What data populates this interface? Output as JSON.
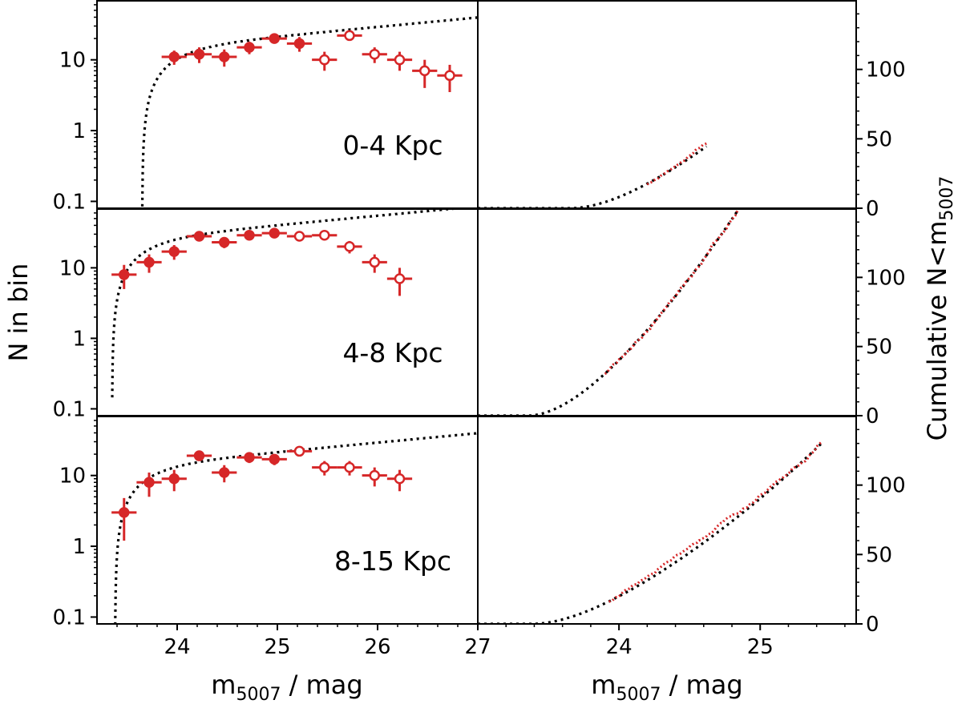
{
  "chart_data": {
    "type": "scatter",
    "figure_layout": "3 rows x 2 columns (left: differential luminosity function, log scale; right: cumulative counts, linear scale)",
    "colors": {
      "data": "#d62728",
      "model": "#000000",
      "frame": "#000000"
    },
    "left_axis": {
      "ylabel": "N in bin",
      "scale": "log",
      "ylim": [
        0.08,
        70
      ],
      "yticks": [
        0.1,
        1,
        10
      ],
      "ytick_labels": [
        "0.1",
        "1",
        "10"
      ],
      "xlabel_main": "m",
      "xlabel_sub": "5007",
      "xlabel_tail": " / mag",
      "xlim": [
        23.2,
        27.0
      ],
      "xticks": [
        24,
        25,
        26,
        27
      ],
      "xtick_labels": [
        "24",
        "25",
        "26",
        "27"
      ]
    },
    "right_axis": {
      "ylabel_main": "Cumulative N<m",
      "ylabel_sub": "5007",
      "scale": "linear",
      "ylim": [
        0,
        150
      ],
      "yticks": [
        0,
        50,
        100
      ],
      "ytick_labels": [
        "0",
        "50",
        "100"
      ],
      "xlabel_main": "m",
      "xlabel_sub": "5007",
      "xlabel_tail": " / mag",
      "xlim": [
        23.0,
        25.68
      ],
      "xticks": [
        24,
        25
      ],
      "xtick_labels": [
        "24",
        "25"
      ]
    },
    "panels": [
      {
        "label": "0-4 Kpc",
        "m_cut": 24.63,
        "model_params": {
          "scale": 25.0,
          "m_star": 23.65
        },
        "bins": [
          {
            "x": 23.97,
            "y": 11,
            "err": 2.5,
            "filled": true
          },
          {
            "x": 24.22,
            "y": 12,
            "err": 3.0,
            "filled": true
          },
          {
            "x": 24.47,
            "y": 11,
            "err": 3.0,
            "filled": true
          },
          {
            "x": 24.72,
            "y": 15,
            "err": 3.0,
            "filled": true
          },
          {
            "x": 24.97,
            "y": 20,
            "err": 3.0,
            "filled": true
          },
          {
            "x": 25.22,
            "y": 17,
            "err": 4.0,
            "filled": true
          },
          {
            "x": 25.47,
            "y": 10,
            "err": 3.0,
            "filled": false
          },
          {
            "x": 25.72,
            "y": 22,
            "err": 2.0,
            "filled": false
          },
          {
            "x": 25.97,
            "y": 12,
            "err": 3.0,
            "filled": false
          },
          {
            "x": 26.22,
            "y": 10,
            "err": 3.0,
            "filled": false
          },
          {
            "x": 26.47,
            "y": 7,
            "err": 3.0,
            "filled": false
          },
          {
            "x": 26.72,
            "y": 6,
            "err": 2.5,
            "filled": false
          }
        ]
      },
      {
        "label": "4-8 Kpc",
        "m_cut": 25.12,
        "model_params": {
          "scale": 47.0,
          "m_star": 23.35
        },
        "bins": [
          {
            "x": 23.47,
            "y": 8,
            "err": 3.0,
            "filled": true
          },
          {
            "x": 23.72,
            "y": 12,
            "err": 3.5,
            "filled": true
          },
          {
            "x": 23.97,
            "y": 17,
            "err": 4.0,
            "filled": true
          },
          {
            "x": 24.22,
            "y": 28,
            "err": 3.0,
            "filled": true
          },
          {
            "x": 24.47,
            "y": 23,
            "err": 4.0,
            "filled": true
          },
          {
            "x": 24.72,
            "y": 29,
            "err": 3.0,
            "filled": true
          },
          {
            "x": 24.97,
            "y": 31,
            "err": 3.0,
            "filled": true
          },
          {
            "x": 25.22,
            "y": 28,
            "err": 4.0,
            "filled": false
          },
          {
            "x": 25.47,
            "y": 29,
            "err": 3.0,
            "filled": false
          },
          {
            "x": 25.72,
            "y": 20,
            "err": 4.0,
            "filled": false
          },
          {
            "x": 25.97,
            "y": 12,
            "err": 3.5,
            "filled": false
          },
          {
            "x": 26.22,
            "y": 7,
            "err": 3.0,
            "filled": false
          }
        ]
      },
      {
        "label": "8-15 Kpc",
        "m_cut": 25.45,
        "model_params": {
          "scale": 25.0,
          "m_star": 23.38
        },
        "bins": [
          {
            "x": 23.47,
            "y": 3,
            "err": 1.8,
            "filled": true
          },
          {
            "x": 23.72,
            "y": 8,
            "err": 3.0,
            "filled": true
          },
          {
            "x": 23.97,
            "y": 9,
            "err": 3.0,
            "filled": true
          },
          {
            "x": 24.22,
            "y": 19,
            "err": 3.0,
            "filled": true
          },
          {
            "x": 24.47,
            "y": 11,
            "err": 3.0,
            "filled": true
          },
          {
            "x": 24.72,
            "y": 18,
            "err": 3.0,
            "filled": true
          },
          {
            "x": 24.97,
            "y": 17,
            "err": 3.0,
            "filled": true
          },
          {
            "x": 25.22,
            "y": 22,
            "err": 3.0,
            "filled": false
          },
          {
            "x": 25.47,
            "y": 13,
            "err": 3.0,
            "filled": false
          },
          {
            "x": 25.72,
            "y": 13,
            "err": 3.0,
            "filled": false
          },
          {
            "x": 25.97,
            "y": 10,
            "err": 3.0,
            "filled": false
          },
          {
            "x": 26.22,
            "y": 9,
            "err": 3.0,
            "filled": false
          }
        ]
      }
    ]
  }
}
